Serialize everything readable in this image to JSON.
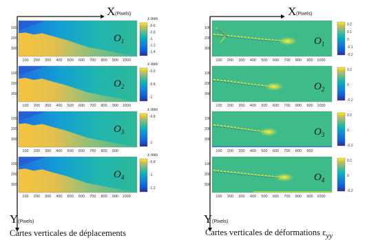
{
  "left_column": {
    "axis_x": {
      "label": "X",
      "unit": "(Pixels)"
    },
    "axis_y": {
      "label": "Y",
      "unit": "(Pixels)"
    },
    "caption": "Cartes verticales de déplacements",
    "maps": [
      {
        "observation": "1",
        "colorbar": {
          "unit": "x mm",
          "ticks": [
            "-0.6",
            "-0.8",
            "-1",
            "-1.2",
            "-1.4"
          ]
        },
        "x_ticks": [
          "100",
          "200",
          "300",
          "400",
          "500",
          "600",
          "700",
          "800",
          "900",
          "1000"
        ],
        "y_ticks": [
          "100",
          "200",
          "300"
        ]
      },
      {
        "observation": "2",
        "colorbar": {
          "unit": "x mm",
          "ticks": [
            "-0.6",
            "-0.8",
            "-1"
          ]
        },
        "x_ticks": [
          "100",
          "200",
          "300",
          "400",
          "500",
          "600",
          "700",
          "800",
          "900",
          "1000"
        ],
        "y_ticks": [
          "100",
          "200",
          "300"
        ]
      },
      {
        "observation": "3",
        "colorbar": {
          "unit": "x mm",
          "ticks": [
            "-0.8",
            "-1"
          ]
        },
        "x_ticks": [
          "100",
          "200",
          "300",
          "400",
          "500",
          "600",
          "700",
          "800",
          "900"
        ],
        "y_ticks": [
          "100",
          "200",
          "300"
        ]
      },
      {
        "observation": "4",
        "colorbar": {
          "unit": "x mm",
          "ticks": [
            "-0.8",
            "-1",
            "-1.2"
          ]
        },
        "x_ticks": [
          "100",
          "200",
          "300",
          "400",
          "500",
          "600",
          "700",
          "800",
          "900",
          "1000"
        ],
        "y_ticks": [
          "100",
          "200",
          "300"
        ]
      }
    ]
  },
  "right_column": {
    "axis_x": {
      "label": "X",
      "unit": "(Pixels)"
    },
    "axis_y": {
      "label": "Y",
      "unit": "(Pixels)"
    },
    "caption": "Cartes verticales de déformations ε",
    "caption_subscript": "yy",
    "maps": [
      {
        "observation": "1",
        "colorbar": {
          "ticks": [
            "0.2",
            "0.1",
            "0",
            "-0.1",
            "-0.2"
          ]
        },
        "x_ticks": [
          "100",
          "200",
          "300",
          "400",
          "500",
          "600",
          "700",
          "800",
          "900",
          "1000"
        ],
        "y_ticks": [
          "100",
          "200",
          "300"
        ]
      },
      {
        "observation": "2",
        "colorbar": {
          "ticks": [
            "0.2",
            "0",
            "-0.2"
          ]
        },
        "x_ticks": [
          "100",
          "200",
          "300",
          "400",
          "500",
          "600",
          "700",
          "800",
          "900",
          "1000"
        ],
        "y_ticks": [
          "100",
          "200",
          "300"
        ]
      },
      {
        "observation": "3",
        "colorbar": {
          "ticks": [
            "0.2",
            "0",
            "-0.2"
          ]
        },
        "x_ticks": [
          "100",
          "200",
          "300",
          "400",
          "500",
          "600",
          "700",
          "800",
          "900"
        ],
        "y_ticks": [
          "100",
          "200",
          "300"
        ]
      },
      {
        "observation": "4",
        "colorbar": {
          "ticks": [
            "0.2",
            "0",
            "-0.2"
          ]
        },
        "x_ticks": [
          "100",
          "200",
          "300",
          "400",
          "500",
          "600",
          "700",
          "800",
          "900",
          "1000"
        ],
        "y_ticks": [
          "100",
          "200",
          "300"
        ]
      }
    ]
  },
  "colors": {
    "parula_low": "#352a87",
    "parula_mid": "#21b1a9",
    "parula_high": "#f9fb0e",
    "strain_background": "#3dbb88",
    "strain_crack": "#fce626"
  }
}
